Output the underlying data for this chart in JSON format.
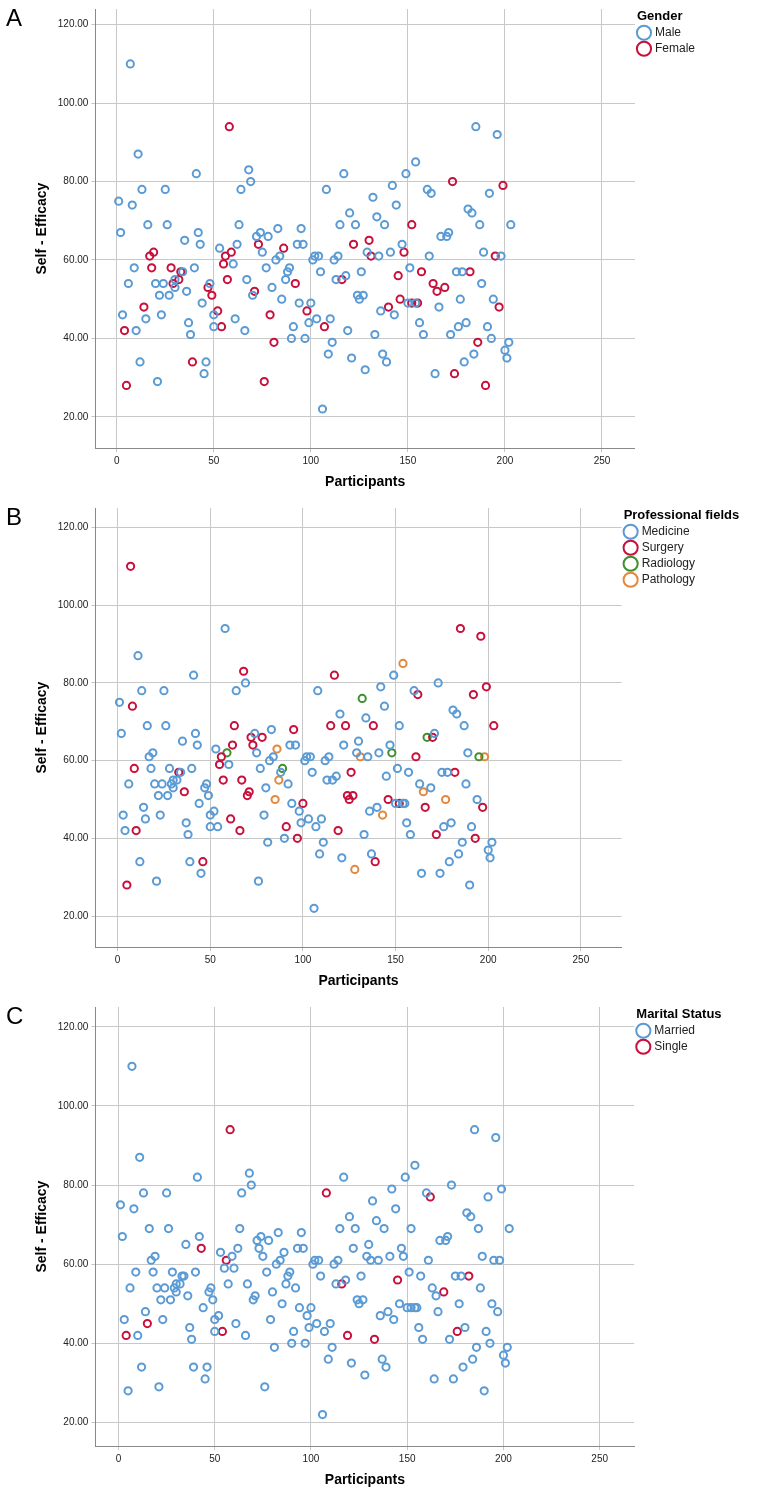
{
  "chart_data": [
    {
      "type": "scatter",
      "annotations": [
        "A"
      ],
      "xlabel": "Participants",
      "ylabel": "Self - Efficacy",
      "legend_title": "Gender",
      "legend": "top right",
      "grid": true,
      "marker": "circle",
      "xlim": [
        -11,
        267
      ],
      "xticks": [
        0,
        50,
        100,
        150,
        200,
        250
      ],
      "ylim": [
        12,
        124
      ],
      "yticks": [
        {
          "value": 20,
          "label": "20.00"
        },
        {
          "value": 40,
          "label": "40.00"
        },
        {
          "value": 60,
          "label": "60.00"
        },
        {
          "value": 80,
          "label": "80.00"
        },
        {
          "value": 100,
          "label": "100.00"
        },
        {
          "value": 120,
          "label": "120.00"
        }
      ],
      "series": [
        {
          "name": "Male",
          "color": "#5b9bd5",
          "x": [
            1,
            2,
            3,
            6,
            7,
            8,
            9,
            10,
            11,
            12,
            13,
            15,
            16,
            20,
            21,
            22,
            23,
            24,
            25,
            26,
            27,
            30,
            30,
            34,
            35,
            36,
            37,
            38,
            40,
            41,
            42,
            43,
            44,
            45,
            46,
            48,
            50,
            50,
            53,
            60,
            61,
            62,
            63,
            64,
            66,
            67,
            68,
            69,
            70,
            72,
            74,
            75,
            77,
            78,
            80,
            82,
            83,
            84,
            85,
            87,
            88,
            89,
            90,
            91,
            93,
            94,
            95,
            96,
            97,
            99,
            100,
            101,
            102,
            103,
            104,
            105,
            106,
            108,
            109,
            110,
            111,
            112,
            113,
            114,
            115,
            117,
            118,
            119,
            120,
            121,
            123,
            124,
            125,
            126,
            127,
            128,
            129,
            132,
            133,
            134,
            135,
            136,
            137,
            138,
            139,
            141,
            142,
            143,
            144,
            147,
            149,
            150,
            151,
            154,
            154,
            156,
            158,
            160,
            161,
            162,
            164,
            166,
            167,
            170,
            171,
            172,
            175,
            176,
            177,
            178,
            179,
            180,
            181,
            183,
            184,
            185,
            187,
            188,
            189,
            191,
            192,
            193,
            194,
            196,
            198,
            200,
            201,
            202,
            203
          ],
          "values": [
            75,
            67,
            46,
            54,
            110,
            74,
            58,
            42,
            87,
            34,
            78,
            45,
            69,
            54,
            29,
            51,
            46,
            54,
            78,
            69,
            51,
            55,
            53,
            57,
            65,
            52,
            44,
            41,
            58,
            82,
            67,
            64,
            49,
            31,
            34,
            54,
            46,
            43,
            63,
            59,
            45,
            64,
            69,
            78,
            42,
            55,
            83,
            80,
            51,
            66,
            67,
            62,
            58,
            66,
            53,
            60,
            68,
            61,
            50,
            55,
            57,
            58,
            40,
            43,
            64,
            49,
            68,
            64,
            40,
            44,
            49,
            60,
            61,
            45,
            61,
            57,
            22,
            78,
            36,
            45,
            39,
            60,
            55,
            61,
            69,
            82,
            56,
            42,
            72,
            35,
            69,
            51,
            50,
            57,
            51,
            32,
            62,
            76,
            41,
            71,
            61,
            47,
            36,
            69,
            34,
            62,
            79,
            46,
            74,
            64,
            82,
            49,
            58,
            49,
            85,
            44,
            41,
            78,
            61,
            77,
            31,
            48,
            66,
            66,
            67,
            41,
            57,
            43,
            50,
            57,
            34,
            44,
            73,
            72,
            36,
            94,
            69,
            54,
            62,
            43,
            77,
            40,
            50,
            92,
            61,
            37,
            35,
            39,
            69
          ]
        },
        {
          "name": "Female",
          "color": "#c8103c",
          "x": [
            4,
            5,
            14,
            17,
            18,
            19,
            28,
            29,
            32,
            33,
            39,
            47,
            49,
            52,
            54,
            55,
            56,
            57,
            58,
            59,
            71,
            73,
            76,
            79,
            81,
            86,
            92,
            98,
            107,
            116,
            122,
            130,
            131,
            140,
            145,
            146,
            148,
            152,
            152,
            155,
            157,
            163,
            165,
            169,
            173,
            174,
            182,
            186,
            190,
            195,
            197,
            199
          ],
          "values": [
            42,
            28,
            48,
            61,
            58,
            62,
            58,
            54,
            55,
            57,
            34,
            53,
            51,
            47,
            43,
            59,
            61,
            55,
            94,
            62,
            52,
            64,
            29,
            46,
            39,
            63,
            54,
            47,
            43,
            55,
            64,
            65,
            61,
            48,
            56,
            50,
            62,
            49,
            69,
            49,
            57,
            54,
            52,
            53,
            80,
            31,
            57,
            39,
            28,
            61,
            48,
            79
          ]
        }
      ]
    },
    {
      "type": "scatter",
      "annotations": [
        "B"
      ],
      "xlabel": "Participants",
      "ylabel": "Self - Efficacy",
      "legend_title": "Professional fields",
      "legend": "top right",
      "grid": true,
      "marker": "circle",
      "xlim": [
        -12,
        272
      ],
      "xticks": [
        0,
        50,
        100,
        150,
        200,
        250
      ],
      "ylim": [
        12,
        125
      ],
      "yticks": [
        {
          "value": 20,
          "label": "20.00"
        },
        {
          "value": 40,
          "label": "40.00"
        },
        {
          "value": 60,
          "label": "60.00"
        },
        {
          "value": 80,
          "label": "80.00"
        },
        {
          "value": 100,
          "label": "100.00"
        },
        {
          "value": 120,
          "label": "120.00"
        }
      ],
      "series": [
        {
          "name": "Medicine",
          "color": "#5b9bd5",
          "x": [
            1,
            2,
            3,
            4,
            6,
            11,
            12,
            13,
            14,
            15,
            16,
            17,
            18,
            19,
            20,
            21,
            22,
            23,
            24,
            25,
            26,
            27,
            28,
            29,
            30,
            30,
            32,
            34,
            35,
            37,
            38,
            39,
            40,
            41,
            42,
            43,
            44,
            45,
            47,
            48,
            49,
            50,
            50,
            52,
            53,
            54,
            58,
            60,
            64,
            69,
            74,
            75,
            76,
            77,
            79,
            80,
            81,
            82,
            83,
            84,
            88,
            90,
            92,
            93,
            94,
            96,
            98,
            99,
            101,
            102,
            103,
            104,
            105,
            106,
            107,
            108,
            109,
            110,
            111,
            112,
            113,
            114,
            116,
            118,
            120,
            121,
            122,
            129,
            130,
            133,
            134,
            135,
            136,
            137,
            140,
            141,
            142,
            144,
            145,
            147,
            149,
            150,
            151,
            152,
            154,
            155,
            156,
            157,
            158,
            160,
            163,
            164,
            169,
            171,
            173,
            174,
            175,
            176,
            178,
            179,
            180,
            181,
            183,
            184,
            186,
            187,
            188,
            189,
            190,
            191,
            194,
            200,
            201,
            202
          ],
          "values": [
            75,
            67,
            46,
            42,
            54,
            87,
            34,
            78,
            48,
            45,
            69,
            61,
            58,
            62,
            54,
            29,
            51,
            46,
            54,
            78,
            69,
            51,
            58,
            54,
            55,
            53,
            55,
            57,
            65,
            44,
            41,
            34,
            58,
            82,
            67,
            64,
            49,
            31,
            53,
            54,
            51,
            46,
            43,
            47,
            63,
            43,
            94,
            59,
            78,
            80,
            67,
            62,
            29,
            58,
            46,
            53,
            39,
            60,
            68,
            61,
            57,
            40,
            54,
            64,
            49,
            64,
            47,
            44,
            60,
            61,
            45,
            61,
            57,
            22,
            43,
            78,
            36,
            45,
            39,
            60,
            55,
            61,
            55,
            56,
            72,
            35,
            64,
            62,
            65,
            41,
            71,
            61,
            47,
            36,
            48,
            62,
            79,
            74,
            56,
            64,
            82,
            49,
            58,
            69,
            49,
            49,
            44,
            57,
            41,
            78,
            54,
            31,
            53,
            67,
            80,
            31,
            57,
            43,
            57,
            34,
            44,
            73,
            72,
            36,
            39,
            69,
            54,
            62,
            28,
            43,
            50,
            37,
            35,
            39
          ]
        },
        {
          "name": "Surgery",
          "color": "#c8103c",
          "x": [
            5,
            7,
            8,
            9,
            10,
            33,
            36,
            46,
            55,
            56,
            57,
            61,
            62,
            63,
            66,
            67,
            68,
            70,
            71,
            72,
            73,
            78,
            91,
            95,
            97,
            100,
            115,
            117,
            119,
            123,
            124,
            125,
            126,
            127,
            138,
            139,
            146,
            152,
            161,
            162,
            166,
            170,
            172,
            182,
            185,
            192,
            193,
            196,
            197,
            199,
            203
          ],
          "values": [
            28,
            110,
            74,
            58,
            42,
            57,
            52,
            34,
            59,
            61,
            55,
            45,
            64,
            69,
            42,
            55,
            83,
            51,
            52,
            66,
            64,
            66,
            43,
            68,
            40,
            49,
            69,
            82,
            42,
            69,
            51,
            50,
            57,
            51,
            69,
            34,
            50,
            49,
            61,
            77,
            48,
            66,
            41,
            57,
            94,
            77,
            40,
            92,
            48,
            79,
            69
          ]
        },
        {
          "name": "Radiology",
          "color": "#3f8f2f",
          "x": [
            59,
            89,
            132,
            148,
            167,
            195
          ],
          "values": [
            62,
            58,
            76,
            62,
            66,
            61
          ]
        },
        {
          "name": "Pathology",
          "color": "#e3883c",
          "x": [
            85,
            86,
            87,
            128,
            131,
            143,
            154,
            165,
            177,
            198
          ],
          "values": [
            50,
            63,
            55,
            32,
            61,
            46,
            85,
            52,
            50,
            61
          ]
        }
      ]
    },
    {
      "type": "scatter",
      "annotations": [
        "C"
      ],
      "xlabel": "Participants",
      "ylabel": "Self - Efficacy",
      "legend_title": "Marital Status",
      "legend": "top right",
      "grid": true,
      "marker": "circle",
      "xlim": [
        -12,
        268
      ],
      "xticks": [
        0,
        50,
        100,
        150,
        200,
        250
      ],
      "ylim": [
        14,
        125
      ],
      "yticks": [
        {
          "value": 20,
          "label": "20.00"
        },
        {
          "value": 40,
          "label": "40.00"
        },
        {
          "value": 60,
          "label": "60.00"
        },
        {
          "value": 80,
          "label": "80.00"
        },
        {
          "value": 100,
          "label": "100.00"
        },
        {
          "value": 120,
          "label": "120.00"
        }
      ],
      "series": [
        {
          "name": "Married",
          "color": "#5b9bd5",
          "x": [
            1,
            2,
            3,
            5,
            6,
            7,
            8,
            9,
            10,
            11,
            12,
            13,
            14,
            16,
            17,
            18,
            19,
            20,
            21,
            22,
            23,
            24,
            25,
            26,
            27,
            28,
            29,
            30,
            30,
            32,
            33,
            34,
            35,
            36,
            37,
            38,
            39,
            40,
            41,
            42,
            44,
            45,
            46,
            47,
            48,
            49,
            50,
            50,
            52,
            53,
            55,
            57,
            59,
            60,
            61,
            62,
            63,
            64,
            66,
            67,
            68,
            69,
            70,
            71,
            72,
            73,
            74,
            75,
            76,
            77,
            78,
            79,
            80,
            81,
            82,
            83,
            84,
            85,
            86,
            87,
            88,
            89,
            90,
            91,
            92,
            93,
            94,
            95,
            96,
            97,
            98,
            99,
            100,
            101,
            102,
            103,
            104,
            105,
            106,
            107,
            109,
            110,
            111,
            112,
            113,
            114,
            115,
            117,
            118,
            120,
            121,
            122,
            123,
            124,
            125,
            126,
            127,
            128,
            129,
            130,
            131,
            132,
            134,
            135,
            136,
            137,
            138,
            139,
            140,
            141,
            142,
            143,
            144,
            146,
            147,
            148,
            149,
            150,
            151,
            152,
            152,
            154,
            154,
            155,
            156,
            157,
            158,
            160,
            161,
            163,
            164,
            165,
            166,
            167,
            170,
            171,
            172,
            173,
            174,
            175,
            177,
            178,
            179,
            180,
            181,
            183,
            184,
            185,
            186,
            187,
            188,
            189,
            190,
            191,
            192,
            193,
            194,
            195,
            196,
            197,
            198,
            199,
            200,
            201,
            202,
            203
          ],
          "values": [
            75,
            67,
            46,
            28,
            54,
            110,
            74,
            58,
            42,
            87,
            34,
            78,
            48,
            69,
            61,
            58,
            62,
            54,
            29,
            51,
            46,
            54,
            78,
            69,
            51,
            58,
            54,
            55,
            53,
            55,
            57,
            57,
            65,
            52,
            44,
            41,
            34,
            58,
            82,
            67,
            49,
            31,
            34,
            53,
            54,
            51,
            46,
            43,
            47,
            63,
            59,
            55,
            62,
            59,
            45,
            64,
            69,
            78,
            42,
            55,
            83,
            80,
            51,
            52,
            66,
            64,
            67,
            62,
            29,
            58,
            66,
            46,
            53,
            39,
            60,
            68,
            61,
            50,
            63,
            55,
            57,
            58,
            40,
            43,
            54,
            64,
            49,
            68,
            64,
            40,
            47,
            44,
            49,
            60,
            61,
            45,
            61,
            57,
            22,
            43,
            36,
            45,
            39,
            60,
            55,
            61,
            69,
            82,
            56,
            72,
            35,
            64,
            69,
            51,
            50,
            57,
            51,
            32,
            62,
            65,
            61,
            76,
            71,
            61,
            47,
            36,
            69,
            34,
            48,
            62,
            79,
            46,
            74,
            50,
            64,
            62,
            82,
            49,
            58,
            49,
            69,
            49,
            85,
            49,
            44,
            57,
            41,
            78,
            61,
            54,
            31,
            52,
            48,
            66,
            66,
            67,
            41,
            80,
            31,
            57,
            50,
            57,
            34,
            44,
            73,
            72,
            36,
            94,
            39,
            69,
            54,
            62,
            28,
            43,
            77,
            40,
            50,
            61,
            92,
            48,
            61,
            79,
            37,
            35,
            39,
            69
          ]
        },
        {
          "name": "Single",
          "color": "#c8103c",
          "x": [
            4,
            15,
            43,
            54,
            56,
            58,
            108,
            116,
            119,
            133,
            145,
            162,
            169,
            176,
            182
          ],
          "values": [
            42,
            45,
            64,
            43,
            61,
            94,
            78,
            55,
            42,
            41,
            56,
            77,
            53,
            43,
            57
          ]
        }
      ]
    }
  ]
}
